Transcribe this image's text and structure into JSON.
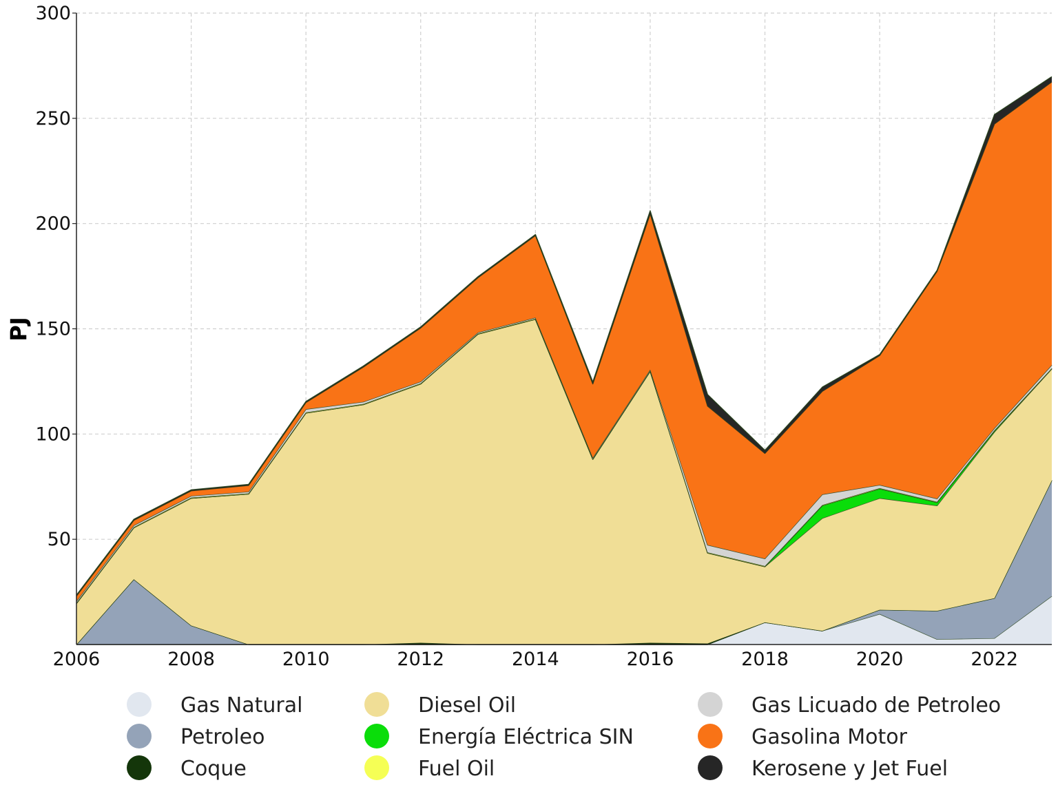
{
  "chart_data": {
    "type": "area",
    "stacked": true,
    "ylabel": "PJ",
    "xlabel": "",
    "xlim": [
      2006,
      2023
    ],
    "ylim": [
      0,
      300
    ],
    "x_ticks": [
      2006,
      2008,
      2010,
      2012,
      2014,
      2016,
      2018,
      2020,
      2022
    ],
    "y_ticks": [
      50,
      100,
      150,
      200,
      250,
      300
    ],
    "grid": true,
    "legend_position": "bottom",
    "x": [
      2006,
      2007,
      2008,
      2009,
      2010,
      2011,
      2012,
      2013,
      2014,
      2015,
      2016,
      2017,
      2018,
      2019,
      2020,
      2021,
      2022,
      2023
    ],
    "series": [
      {
        "name": "Gas Natural",
        "color": "#e1e7ef",
        "values": [
          0,
          0,
          0,
          0,
          0,
          0,
          0,
          0,
          0,
          0,
          0,
          0,
          10.5,
          6.5,
          14.5,
          2.5,
          3,
          23
        ]
      },
      {
        "name": "Petroleo",
        "color": "#94a3b8",
        "values": [
          0,
          31,
          9,
          0,
          0,
          0,
          0,
          0,
          0,
          0,
          0,
          0,
          0,
          0,
          2,
          13.5,
          19,
          55
        ]
      },
      {
        "name": "Coque",
        "color": "#14360a",
        "values": [
          0,
          0,
          0,
          0,
          0,
          0,
          0.8,
          0,
          0,
          0,
          0.8,
          0.5,
          0,
          0,
          0,
          0,
          0,
          0
        ]
      },
      {
        "name": "Diesel Oil",
        "color": "#f0de96",
        "values": [
          19.5,
          24.5,
          60.5,
          71.5,
          110,
          114,
          123,
          147.5,
          154.5,
          88,
          129,
          43,
          26.5,
          53.5,
          53,
          50,
          79,
          53
        ]
      },
      {
        "name": "Energía Eléctrica SIN",
        "color": "#0add0a",
        "values": [
          0,
          0,
          0,
          0,
          0,
          0,
          0,
          0,
          0,
          0,
          0,
          0,
          0,
          6,
          4.5,
          1.5,
          0.5,
          0
        ]
      },
      {
        "name": "Fuel Oil",
        "color": "#f5ff55",
        "values": [
          0.3,
          0.3,
          0.3,
          0.3,
          0.3,
          0.3,
          0.3,
          0.3,
          0.3,
          0.3,
          0.3,
          0.3,
          0.3,
          0.3,
          0.3,
          0.3,
          0.3,
          0.3
        ]
      },
      {
        "name": "Gas Licuado de Petroleo",
        "color": "#d4d4d4",
        "values": [
          0.8,
          0.8,
          0.8,
          0.8,
          1.5,
          1,
          0.8,
          0.5,
          0.5,
          0.5,
          0.5,
          3.5,
          3.5,
          5,
          1.5,
          1.5,
          1,
          1.5
        ]
      },
      {
        "name": "Gasolina Motor",
        "color": "#f97316",
        "values": [
          2.4,
          2.4,
          2.4,
          3,
          3.2,
          16.5,
          25.5,
          26,
          39,
          35,
          74,
          66,
          50,
          49,
          61.5,
          108,
          144.5,
          134.5
        ]
      },
      {
        "name": "Kerosene y Jet Fuel",
        "color": "#262626",
        "values": [
          0.5,
          0.5,
          0.5,
          0.5,
          0.5,
          0.5,
          0.5,
          0.5,
          0.5,
          1,
          1.5,
          5.5,
          1.5,
          2,
          0.5,
          0.5,
          4.5,
          2.5
        ]
      }
    ]
  }
}
